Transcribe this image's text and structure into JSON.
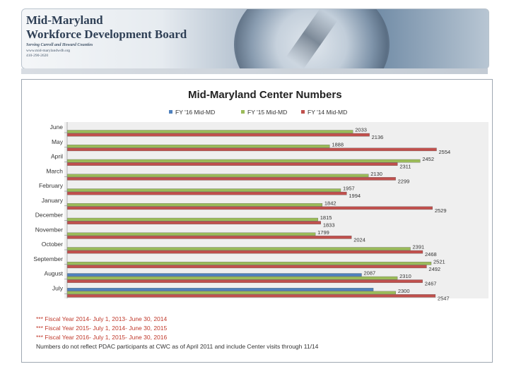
{
  "banner": {
    "org_line1": "Mid-Maryland",
    "org_line2": "Workforce Development Board",
    "tagline": "Serving Carroll and Howard Counties",
    "url": "www.mid-marylandwdb.org",
    "phone": "410-290-2620"
  },
  "colors": {
    "fy16": "#4f81bd",
    "fy15": "#9bbb59",
    "fy14": "#c0504d"
  },
  "chart_data": {
    "type": "bar",
    "orientation": "horizontal",
    "title": "Mid-Maryland Center Numbers",
    "categories": [
      "June",
      "May",
      "April",
      "March",
      "February",
      "January",
      "December",
      "November",
      "October",
      "September",
      "August",
      "July"
    ],
    "series": [
      {
        "name": "FY '16 Mid-MD",
        "values": [
          null,
          null,
          null,
          null,
          null,
          null,
          null,
          null,
          null,
          null,
          2087,
          2160
        ]
      },
      {
        "name": "FY '15 Mid-MD",
        "values": [
          2033,
          1888,
          2452,
          2130,
          1957,
          1842,
          1815,
          1799,
          2391,
          2521,
          2310,
          2300
        ]
      },
      {
        "name": "FY '14 Mid-MD",
        "values": [
          2136,
          2554,
          2311,
          2299,
          1994,
          2529,
          1833,
          2024,
          2468,
          2492,
          2467,
          2547
        ]
      }
    ],
    "data_labels": [
      [
        "",
        "2033",
        "2136"
      ],
      [
        "",
        "1888",
        "2554"
      ],
      [
        "",
        "2452",
        "2311"
      ],
      [
        "",
        "2130",
        "2299"
      ],
      [
        "",
        "1957",
        "1994"
      ],
      [
        "",
        "1842",
        "2529"
      ],
      [
        "",
        "1815",
        "1833"
      ],
      [
        "",
        "1799",
        "2024"
      ],
      [
        "",
        "2391",
        "2468"
      ],
      [
        "",
        "2521",
        "2492"
      ],
      [
        "2087",
        "2310",
        "2467"
      ],
      [
        "",
        "2300",
        "2547"
      ]
    ],
    "legend_position": "top",
    "xlim": [
      0,
      2800
    ]
  },
  "notes": [
    "*** Fiscal Year 2014- July 1, 2013- June 30, 2014",
    "*** Fiscal Year 2015- July 1, 2014- June 30, 2015",
    "*** Fiscal Year 2016- July 1, 2015- June 30, 2016"
  ],
  "footnote": "Numbers do not reflect PDAC participants at CWC as of April 2011 and include Center visits through 11/14"
}
